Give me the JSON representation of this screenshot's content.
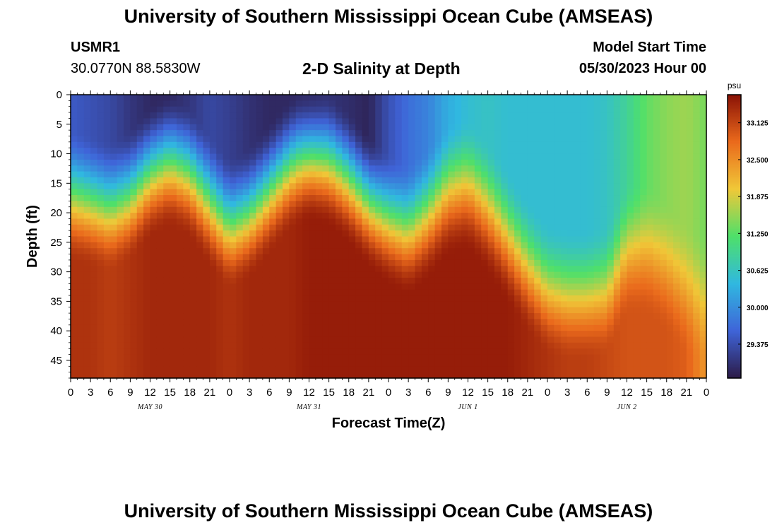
{
  "header": {
    "title": "University of Southern Mississippi Ocean Cube (AMSEAS)",
    "station_id": "USMR1",
    "station_coords": "30.0770N  88.5830W",
    "plot_name": "2-D Salinity at Depth",
    "model_start_label": "Model Start Time",
    "model_start_value": "05/30/2023 Hour 00"
  },
  "footer": {
    "title": "University of Southern Mississippi Ocean Cube (AMSEAS)"
  },
  "colors": {
    "low": "#2c1b47",
    "mid_low": "#3f64d8",
    "cyan": "#30b8e0",
    "green": "#4ee06a",
    "yellow": "#f0c838",
    "orange": "#ea6a1c",
    "high": "#8a1206"
  },
  "chart_data": {
    "type": "heatmap",
    "xlabel": "Forecast Time(Z)",
    "ylabel": "Depth (ft)",
    "x_range_hours": [
      0,
      96
    ],
    "x_tick_labels": [
      "0",
      "3",
      "6",
      "9",
      "12",
      "15",
      "18",
      "21",
      "0",
      "3",
      "6",
      "9",
      "12",
      "15",
      "18",
      "21",
      "0",
      "3",
      "6",
      "9",
      "12",
      "15",
      "18",
      "21",
      "0",
      "3",
      "6",
      "9",
      "12",
      "15",
      "18",
      "21",
      "0"
    ],
    "day_labels": [
      {
        "label": "MAY 30",
        "hour": 12
      },
      {
        "label": "MAY 31",
        "hour": 36
      },
      {
        "label": "JUN 1",
        "hour": 60
      },
      {
        "label": "JUN 2",
        "hour": 84
      }
    ],
    "y_range_ft": [
      0,
      48
    ],
    "y_ticks": [
      0,
      5,
      10,
      15,
      20,
      25,
      30,
      35,
      40,
      45
    ],
    "colorbar": {
      "unit": "psu",
      "range": [
        28.8,
        33.6
      ],
      "labels": [
        "33.125",
        "32.500",
        "31.875",
        "31.250",
        "30.625",
        "30.000",
        "29.375"
      ]
    },
    "halocline_profile": {
      "hours": [
        0,
        3,
        6,
        9,
        12,
        15,
        18,
        21,
        24,
        27,
        30,
        33,
        36,
        39,
        42,
        45,
        48,
        51,
        54,
        57,
        60,
        63,
        66,
        69,
        72,
        75,
        78,
        81,
        84,
        87,
        90,
        93,
        96
      ],
      "mixed_layer_bottom_ft": [
        28,
        29,
        30,
        28,
        24,
        22,
        24,
        29,
        33,
        31,
        27,
        23,
        21,
        22,
        25,
        29,
        32,
        34,
        31,
        27,
        26,
        30,
        35,
        40,
        44,
        45,
        45,
        44,
        37,
        37,
        40,
        44,
        46
      ],
      "surface_salinity_psu": [
        29.5,
        29.4,
        29.3,
        29.1,
        28.95,
        28.95,
        29.1,
        29.3,
        29.2,
        29.05,
        28.95,
        28.95,
        29.0,
        29.05,
        29.0,
        28.9,
        29.4,
        29.7,
        29.9,
        30.3,
        30.5,
        30.6,
        30.5,
        30.5,
        30.5,
        30.5,
        30.5,
        30.6,
        30.9,
        31.3,
        31.5,
        31.6,
        31.4
      ],
      "deep_salinity_psu": [
        33.3,
        33.3,
        33.2,
        33.3,
        33.4,
        33.4,
        33.4,
        33.4,
        33.3,
        33.4,
        33.4,
        33.4,
        33.5,
        33.5,
        33.5,
        33.5,
        33.5,
        33.5,
        33.5,
        33.5,
        33.5,
        33.5,
        33.5,
        33.4,
        33.3,
        33.2,
        33.2,
        33.1,
        33.0,
        33.0,
        33.0,
        32.9,
        32.4
      ]
    }
  }
}
